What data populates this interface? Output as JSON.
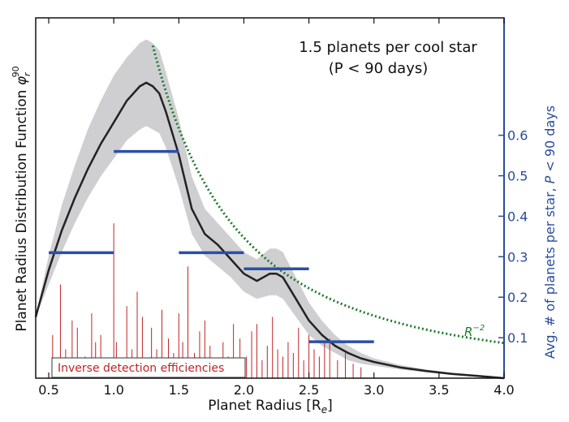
{
  "chart_data": {
    "type": "line",
    "annotation_lines": [
      "1.5 planets per cool star",
      "(P < 90 days)"
    ],
    "xlabel": "Planet Radius [R",
    "xlabel_sub": "e",
    "xlabel_tail": "]",
    "ylabel": "Planet Radius Distribution Function ",
    "ylabel_math": "φ",
    "ylabel_sub": "r",
    "ylabel_sup": "90",
    "y2label_prefix": "Avg. # of planets per star, ",
    "y2label_math": "P",
    "y2label_suffix": " < 90 days",
    "xlim": [
      0.4,
      4.0
    ],
    "ylim_left": [
      0,
      1
    ],
    "ylim_right": [
      0,
      0.89
    ],
    "x_ticks": [
      0.5,
      1.0,
      1.5,
      2.0,
      2.5,
      3.0,
      3.5,
      4.0
    ],
    "x_tick_labels": [
      "0.5",
      "1.0",
      "1.5",
      "2.0",
      "2.5",
      "3.0",
      "3.5",
      "4.0"
    ],
    "y2_ticks": [
      0.1,
      0.2,
      0.3,
      0.4,
      0.5,
      0.6
    ],
    "y2_tick_labels": [
      "0.1",
      "0.2",
      "0.3",
      "0.4",
      "0.5",
      "0.6"
    ],
    "kde": {
      "x": [
        0.4,
        0.5,
        0.6,
        0.7,
        0.8,
        0.9,
        1.0,
        1.1,
        1.2,
        1.25,
        1.3,
        1.35,
        1.4,
        1.5,
        1.6,
        1.7,
        1.8,
        1.9,
        2.0,
        2.1,
        2.2,
        2.25,
        2.3,
        2.4,
        2.5,
        2.6,
        2.7,
        2.8,
        2.9,
        3.0,
        3.2,
        3.4,
        3.6,
        3.8,
        4.0
      ],
      "y": [
        0.17,
        0.3,
        0.41,
        0.5,
        0.58,
        0.65,
        0.71,
        0.77,
        0.81,
        0.82,
        0.81,
        0.79,
        0.74,
        0.62,
        0.47,
        0.4,
        0.37,
        0.33,
        0.29,
        0.27,
        0.29,
        0.29,
        0.28,
        0.22,
        0.16,
        0.12,
        0.09,
        0.07,
        0.055,
        0.045,
        0.03,
        0.02,
        0.012,
        0.006,
        0.0
      ],
      "upper": [
        0.17,
        0.34,
        0.48,
        0.59,
        0.69,
        0.77,
        0.84,
        0.89,
        0.93,
        0.94,
        0.93,
        0.91,
        0.85,
        0.72,
        0.56,
        0.47,
        0.43,
        0.39,
        0.35,
        0.33,
        0.36,
        0.36,
        0.35,
        0.28,
        0.21,
        0.16,
        0.12,
        0.09,
        0.07,
        0.055,
        0.037,
        0.024,
        0.015,
        0.008,
        0.0
      ],
      "lower": [
        0.17,
        0.26,
        0.35,
        0.43,
        0.5,
        0.56,
        0.61,
        0.66,
        0.69,
        0.7,
        0.69,
        0.68,
        0.64,
        0.53,
        0.4,
        0.34,
        0.31,
        0.28,
        0.24,
        0.22,
        0.23,
        0.23,
        0.22,
        0.17,
        0.12,
        0.09,
        0.07,
        0.05,
        0.04,
        0.035,
        0.024,
        0.016,
        0.009,
        0.004,
        0.0
      ]
    },
    "power_law": {
      "label": "R",
      "label_exp": "−2",
      "x_start": 1.3,
      "x_end": 4.0,
      "y_at_2": 0.39
    },
    "bins": [
      {
        "x0": 0.5,
        "x1": 1.0,
        "value": 0.31
      },
      {
        "x0": 1.0,
        "x1": 1.5,
        "value": 0.56
      },
      {
        "x0": 1.5,
        "x1": 2.0,
        "value": 0.31
      },
      {
        "x0": 2.0,
        "x1": 2.5,
        "value": 0.27
      },
      {
        "x0": 2.5,
        "x1": 3.0,
        "value": 0.09
      }
    ],
    "detection_spikes": {
      "legend": "Inverse detection efficiencies",
      "x": [
        0.53,
        0.59,
        0.63,
        0.68,
        0.72,
        0.78,
        0.83,
        0.86,
        0.9,
        0.95,
        1.0,
        1.02,
        1.06,
        1.1,
        1.14,
        1.18,
        1.22,
        1.25,
        1.29,
        1.33,
        1.37,
        1.42,
        1.46,
        1.5,
        1.53,
        1.57,
        1.62,
        1.66,
        1.7,
        1.74,
        1.79,
        1.84,
        1.88,
        1.92,
        1.97,
        2.02,
        2.06,
        2.1,
        2.14,
        2.18,
        2.22,
        2.26,
        2.3,
        2.34,
        2.38,
        2.42,
        2.46,
        2.5,
        2.54,
        2.58,
        2.62,
        2.66,
        2.72,
        2.78,
        2.84,
        2.9
      ],
      "height": [
        0.12,
        0.26,
        0.08,
        0.16,
        0.14,
        0.06,
        0.18,
        0.1,
        0.12,
        0.04,
        0.43,
        0.1,
        0.05,
        0.2,
        0.08,
        0.24,
        0.17,
        0.05,
        0.14,
        0.08,
        0.19,
        0.11,
        0.07,
        0.18,
        0.1,
        0.31,
        0.07,
        0.13,
        0.16,
        0.09,
        0.05,
        0.1,
        0.06,
        0.15,
        0.11,
        0.06,
        0.13,
        0.15,
        0.05,
        0.09,
        0.17,
        0.08,
        0.06,
        0.1,
        0.07,
        0.14,
        0.05,
        0.12,
        0.08,
        0.06,
        0.1,
        0.11,
        0.05,
        0.07,
        0.04,
        0.03
      ]
    },
    "colors": {
      "kde_line": "#222222",
      "band": "#cfcfd2",
      "bins": "#2a4fa5",
      "power_law": "#1f7a2a",
      "spikes": "#c02424",
      "right_axis": "#2a4c9a"
    }
  }
}
